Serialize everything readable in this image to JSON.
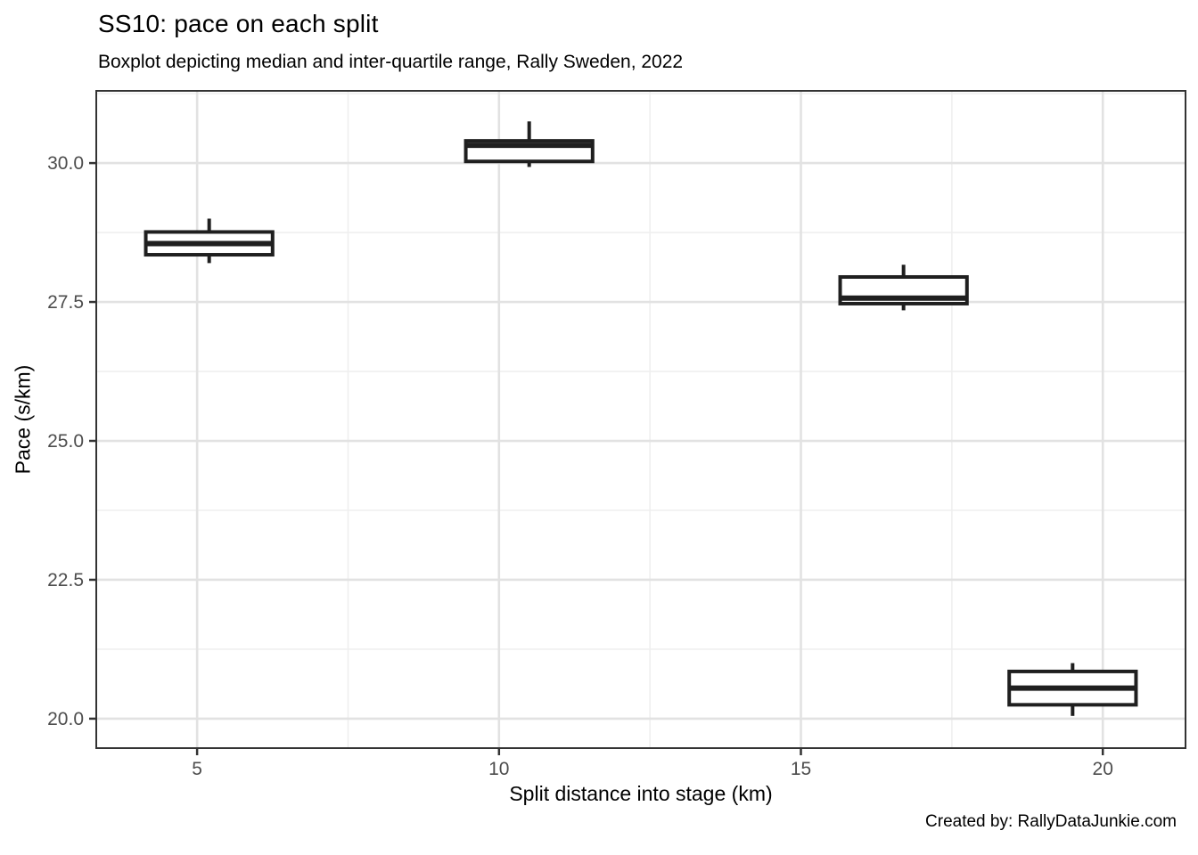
{
  "header": {
    "title": "SS10: pace on each split",
    "subtitle": "Boxplot depicting median and inter-quartile range, Rally Sweden, 2022"
  },
  "footer": {
    "credit": "Created by: RallyDataJunkie.com"
  },
  "chart_data": {
    "type": "boxplot",
    "title": "SS10: pace on each split",
    "subtitle": "Boxplot depicting median and inter-quartile range, Rally Sweden, 2022",
    "xlabel": "Split distance into stage (km)",
    "ylabel": "Pace (s/km)",
    "xlim": [
      3.33,
      21.37
    ],
    "ylim": [
      19.47,
      31.3
    ],
    "x_ticks": [
      5,
      10,
      15,
      20
    ],
    "x_tick_labels": [
      "5",
      "10",
      "15",
      "20"
    ],
    "x_minor": [
      7.5,
      12.5,
      17.5
    ],
    "y_ticks": [
      20.0,
      22.5,
      25.0,
      27.5,
      30.0
    ],
    "y_tick_labels": [
      "20.0",
      "22.5",
      "25.0",
      "27.5",
      "30.0"
    ],
    "y_minor": [
      21.25,
      23.75,
      26.25,
      28.75,
      31.25
    ],
    "grid": true,
    "legend": "none",
    "box_width_km": 2.1,
    "boxes": [
      {
        "x": 5.2,
        "whisker_low": 28.2,
        "q1": 28.35,
        "median": 28.55,
        "q3": 28.76,
        "whisker_high": 29.0
      },
      {
        "x": 10.5,
        "whisker_low": 29.93,
        "q1": 30.03,
        "median": 30.32,
        "q3": 30.4,
        "whisker_high": 30.75
      },
      {
        "x": 16.7,
        "whisker_low": 27.35,
        "q1": 27.47,
        "median": 27.57,
        "q3": 27.95,
        "whisker_high": 28.17
      },
      {
        "x": 19.5,
        "whisker_low": 20.05,
        "q1": 20.25,
        "median": 20.55,
        "q3": 20.85,
        "whisker_high": 21.0
      }
    ],
    "colors": {
      "box_stroke": "#1f1f1f",
      "box_fill": "#ffffff",
      "grid_major": "#e2e2e2",
      "grid_minor": "#efefef",
      "panel_border": "#333333",
      "tick_mark": "#333333",
      "tick_label": "#4d4d4d",
      "background": "#ffffff"
    }
  }
}
